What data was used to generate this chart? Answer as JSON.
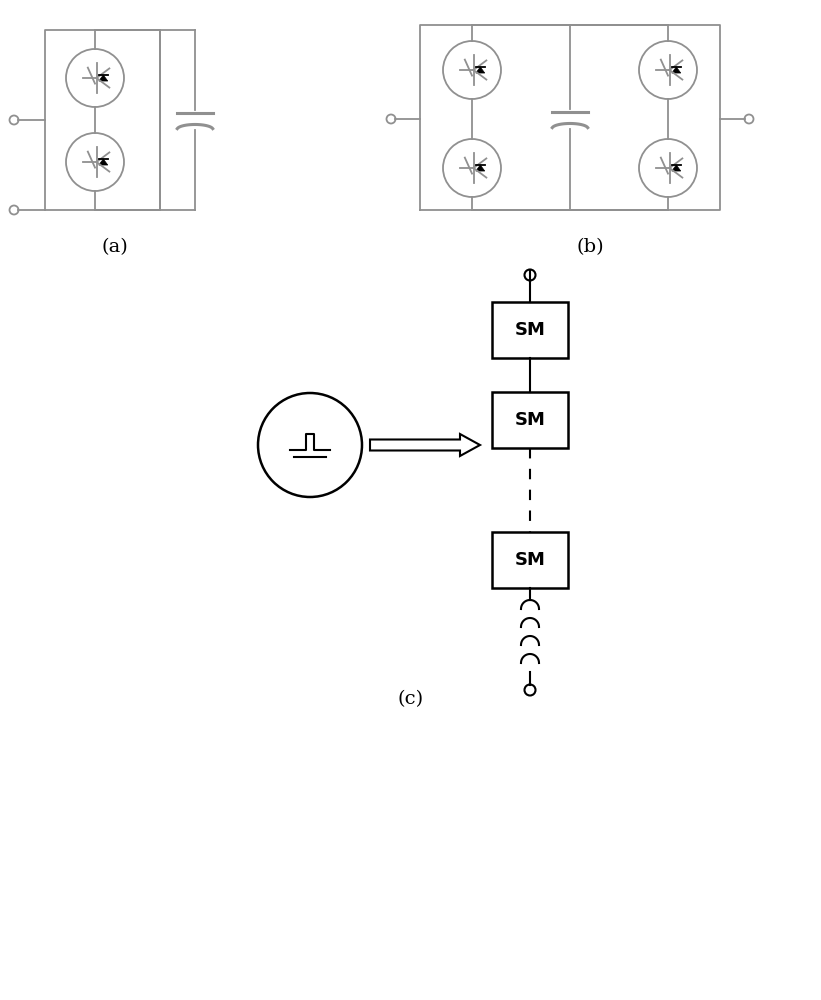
{
  "bg_color": "#ffffff",
  "line_color": "#909090",
  "dark_color": "#000000",
  "label_a": "(a)",
  "label_b": "(b)",
  "label_c": "(c)",
  "sm_label": "SM",
  "fig_width": 8.21,
  "fig_height": 10.0
}
